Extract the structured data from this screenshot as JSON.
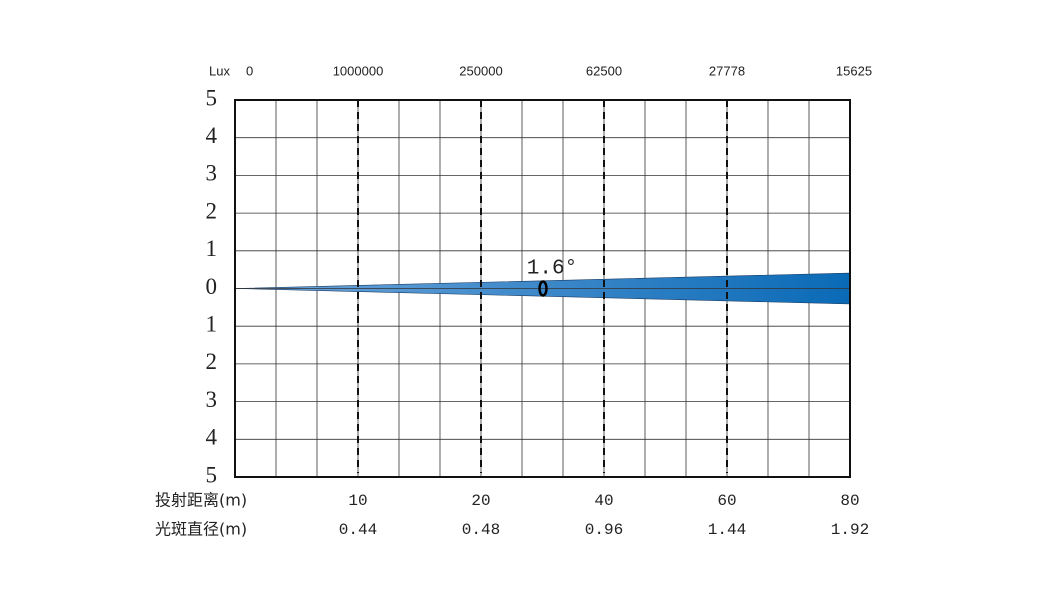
{
  "chart_data": {
    "type": "beam",
    "lux_label": "Lux",
    "lux_origin": 0,
    "lux": [
      1000000,
      250000,
      62500,
      27778,
      15625
    ],
    "distance_label": "投射距离(m)",
    "distance": [
      10,
      20,
      40,
      60,
      80
    ],
    "diameter_label": "光斑直径(m)",
    "diameter": [
      0.44,
      0.48,
      0.96,
      1.44,
      1.92
    ],
    "annotation": "1.6°",
    "beam_extent": [
      -0.41,
      0.41
    ],
    "beam_colors": [
      "#6fa6dc",
      "#0a6ab6"
    ],
    "ylim": [
      -5,
      5
    ],
    "yticks": [
      5,
      4,
      3,
      2,
      1,
      0,
      {
        "value": -1,
        "label": "1"
      },
      {
        "value": -2,
        "label": "2"
      },
      {
        "value": -3,
        "label": "3"
      },
      {
        "value": -4,
        "label": "4"
      },
      {
        "value": -5,
        "label": "5"
      }
    ],
    "grid": true
  }
}
